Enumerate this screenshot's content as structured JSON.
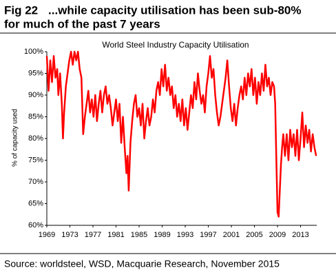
{
  "figure": {
    "number": "Fig 22",
    "title": [
      "...while capacity utilisation has been sub-80%",
      "for much of the past 7 years"
    ],
    "source": "Source: worldsteel, WSD, Macquarie Research, November 2015"
  },
  "chart_data": {
    "type": "line",
    "title": "World Steel Industry Capacity Utilisation",
    "y_label": "% of capacity used",
    "x": [
      1969.0,
      1969.3,
      1969.6,
      1969.9,
      1970.2,
      1970.5,
      1970.8,
      1971.0,
      1971.3,
      1971.6,
      1971.8,
      1972.0,
      1972.3,
      1972.6,
      1972.9,
      1973.2,
      1973.5,
      1973.8,
      1974.1,
      1974.4,
      1974.7,
      1975.0,
      1975.3,
      1975.6,
      1975.9,
      1976.2,
      1976.5,
      1976.8,
      1977.1,
      1977.4,
      1977.7,
      1978.0,
      1978.3,
      1978.6,
      1978.9,
      1979.2,
      1979.5,
      1979.8,
      1980.1,
      1980.4,
      1980.7,
      1981.0,
      1981.3,
      1981.6,
      1981.9,
      1982.2,
      1982.5,
      1982.8,
      1983.0,
      1983.2,
      1983.5,
      1983.8,
      1984.1,
      1984.4,
      1984.7,
      1985.0,
      1985.3,
      1985.6,
      1985.9,
      1986.2,
      1986.5,
      1986.8,
      1987.1,
      1987.4,
      1987.7,
      1988.0,
      1988.3,
      1988.6,
      1988.9,
      1989.2,
      1989.5,
      1989.8,
      1990.1,
      1990.4,
      1990.7,
      1991.0,
      1991.3,
      1991.6,
      1991.9,
      1992.2,
      1992.5,
      1992.8,
      1993.1,
      1993.4,
      1993.7,
      1994.0,
      1994.3,
      1994.6,
      1994.9,
      1995.2,
      1995.5,
      1995.8,
      1996.1,
      1996.4,
      1996.7,
      1997.0,
      1997.3,
      1997.6,
      1997.9,
      1998.2,
      1998.5,
      1998.8,
      1999.1,
      1999.4,
      1999.7,
      2000.0,
      2000.3,
      2000.6,
      2000.9,
      2001.2,
      2001.5,
      2001.8,
      2002.1,
      2002.4,
      2002.7,
      2003.0,
      2003.3,
      2003.6,
      2003.9,
      2004.2,
      2004.5,
      2004.8,
      2005.1,
      2005.4,
      2005.7,
      2006.0,
      2006.3,
      2006.6,
      2006.9,
      2007.2,
      2007.5,
      2007.8,
      2008.1,
      2008.4,
      2008.6,
      2008.8,
      2009.0,
      2009.2,
      2009.4,
      2009.6,
      2009.8,
      2010.0,
      2010.3,
      2010.6,
      2010.9,
      2011.2,
      2011.5,
      2011.8,
      2012.1,
      2012.4,
      2012.7,
      2013.0,
      2013.3,
      2013.6,
      2013.9,
      2014.2,
      2014.5,
      2014.8,
      2015.1,
      2015.4,
      2015.7
    ],
    "series": [
      {
        "name": "Capacity utilisation",
        "color": "#ff0000",
        "values": [
          99,
          91,
          98,
          93,
          99,
          94,
          96,
          90,
          95,
          88,
          80,
          86,
          92,
          95,
          98,
          100,
          97,
          100,
          98,
          100,
          96,
          94,
          81,
          85,
          88,
          91,
          86,
          89,
          85,
          90,
          84,
          88,
          91,
          86,
          90,
          92,
          88,
          90,
          87,
          83,
          86,
          89,
          84,
          88,
          79,
          85,
          78,
          72,
          76,
          68,
          79,
          84,
          88,
          90,
          85,
          87,
          83,
          88,
          80,
          84,
          87,
          83,
          85,
          89,
          86,
          91,
          93,
          90,
          96,
          92,
          97,
          91,
          94,
          90,
          92,
          87,
          90,
          85,
          88,
          84,
          89,
          83,
          87,
          82,
          86,
          90,
          87,
          93,
          89,
          95,
          91,
          88,
          90,
          86,
          92,
          95,
          99,
          94,
          96,
          90,
          86,
          83,
          85,
          88,
          91,
          94,
          98,
          92,
          87,
          84,
          88,
          83,
          87,
          90,
          92,
          89,
          94,
          90,
          95,
          92,
          96,
          90,
          94,
          88,
          93,
          90,
          95,
          91,
          97,
          92,
          94,
          90,
          93,
          92,
          88,
          75,
          63,
          62,
          68,
          74,
          78,
          81,
          76,
          81,
          75,
          82,
          78,
          81,
          76,
          82,
          75,
          80,
          86,
          78,
          83,
          79,
          82,
          77,
          81,
          78,
          76
        ]
      }
    ],
    "xlim": [
      1969,
      2015.8
    ],
    "xticks": [
      1969,
      1973,
      1977,
      1981,
      1985,
      1989,
      1993,
      1997,
      2001,
      2005,
      2009,
      2013
    ],
    "ylim": [
      60,
      100
    ],
    "yticks": [
      {
        "value": 60,
        "label": "60%"
      },
      {
        "value": 65,
        "label": "65%"
      },
      {
        "value": 70,
        "label": "70%"
      },
      {
        "value": 75,
        "label": "75%"
      },
      {
        "value": 80,
        "label": "80%"
      },
      {
        "value": 85,
        "label": "85%"
      },
      {
        "value": 90,
        "label": "90%"
      },
      {
        "value": 95,
        "label": "95%"
      },
      {
        "value": 100,
        "label": "100%"
      }
    ],
    "grid": false
  }
}
